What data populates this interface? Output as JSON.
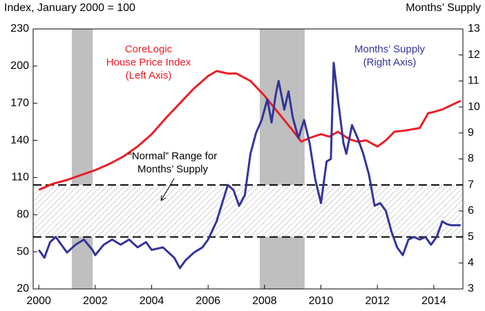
{
  "chart_data": {
    "type": "line",
    "y_label": "Index, January 2000 = 100",
    "y2_label": "Months’ Supply",
    "xlim": [
      1999.8,
      2015.03
    ],
    "xticks": [
      2000,
      2002,
      2004,
      2006,
      2008,
      2010,
      2012,
      2014
    ],
    "ylim": [
      20,
      230
    ],
    "yticks": [
      20,
      50,
      80,
      110,
      140,
      170,
      200,
      230
    ],
    "y2lim": [
      3,
      13
    ],
    "y2ticks": [
      3,
      4,
      5,
      6,
      7,
      8,
      9,
      10,
      11,
      12,
      13
    ],
    "grid": false,
    "shaded_periods": [
      [
        2001.17,
        2001.91
      ],
      [
        2007.83,
        2009.42
      ]
    ],
    "band": {
      "axis": "y2",
      "range": [
        5,
        7
      ]
    },
    "series": [
      {
        "name": "CoreLogic House Price Index",
        "color": "#ee1c25",
        "axis": "y",
        "x": [
          2000,
          2000.5,
          2001,
          2001.5,
          2002,
          2002.5,
          2003,
          2003.5,
          2004,
          2004.5,
          2005,
          2005.5,
          2006,
          2006.3,
          2006.7,
          2007,
          2007.5,
          2008,
          2008.5,
          2009,
          2009.3,
          2009.6,
          2010,
          2010.3,
          2010.6,
          2011,
          2011.3,
          2011.6,
          2012,
          2012.3,
          2012.6,
          2013,
          2013.5,
          2013.8,
          2014,
          2014.3,
          2014.95
        ],
        "values": [
          100,
          105,
          108,
          112,
          116,
          121,
          127,
          135,
          145,
          158,
          170,
          182,
          192,
          196,
          194,
          194,
          188,
          176,
          162,
          148,
          139,
          142,
          145,
          143,
          147,
          141,
          139,
          140,
          135,
          140,
          147,
          148,
          150,
          162,
          163,
          165,
          172
        ]
      },
      {
        "name": "Months’ Supply",
        "color": "#33339a",
        "axis": "y2",
        "x": [
          2000,
          2000.2,
          2000.4,
          2000.6,
          2000.8,
          2001,
          2001.3,
          2001.6,
          2001.9,
          2002,
          2002.3,
          2002.6,
          2002.9,
          2003.2,
          2003.5,
          2003.8,
          2004,
          2004.4,
          2004.8,
          2005,
          2005.2,
          2005.5,
          2005.8,
          2006,
          2006.3,
          2006.5,
          2006.7,
          2006.9,
          2007.1,
          2007.3,
          2007.5,
          2007.7,
          2007.9,
          2008.1,
          2008.25,
          2008.4,
          2008.5,
          2008.7,
          2008.85,
          2009,
          2009.2,
          2009.4,
          2009.6,
          2009.8,
          2010,
          2010.2,
          2010.35,
          2010.45,
          2010.6,
          2010.8,
          2010.9,
          2011.1,
          2011.3,
          2011.5,
          2011.7,
          2011.9,
          2012.1,
          2012.3,
          2012.5,
          2012.7,
          2012.9,
          2013.1,
          2013.3,
          2013.5,
          2013.7,
          2013.9,
          2014.1,
          2014.3,
          2014.45,
          2014.6,
          2014.95
        ],
        "values": [
          4.5,
          4.2,
          4.8,
          5.0,
          4.7,
          4.4,
          4.7,
          4.9,
          4.5,
          4.3,
          4.7,
          4.9,
          4.7,
          4.9,
          4.6,
          4.8,
          4.5,
          4.6,
          4.2,
          3.8,
          4.1,
          4.4,
          4.6,
          4.9,
          5.6,
          6.3,
          7.0,
          6.8,
          6.2,
          6.6,
          8.2,
          9.0,
          9.5,
          10.3,
          9.4,
          10.5,
          11.0,
          9.9,
          10.6,
          9.6,
          8.8,
          9.5,
          8.6,
          7.2,
          6.3,
          7.9,
          8.0,
          11.7,
          10.3,
          8.6,
          8.2,
          9.3,
          8.8,
          8.2,
          7.4,
          6.2,
          6.3,
          6.0,
          5.2,
          4.6,
          4.3,
          4.9,
          5.0,
          4.9,
          5.0,
          4.7,
          5.0,
          5.6,
          5.5,
          5.45,
          5.45
        ]
      }
    ],
    "annotations": [
      [
        "CoreLogic",
        "House Price Index",
        "(Left Axis)"
      ],
      [
        "Months’ Supply",
        "(Right Axis)"
      ],
      [
        "“Normal” Range for",
        "Months’ Supply"
      ]
    ]
  }
}
